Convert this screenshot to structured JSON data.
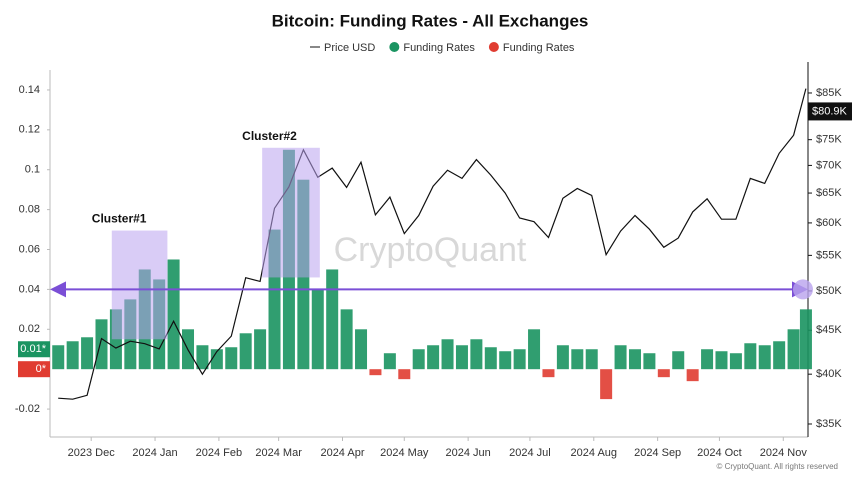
{
  "chart_data": {
    "type": "bar",
    "title": "Bitcoin: Funding Rates - All Exchanges",
    "watermark": "CryptoQuant",
    "copyright": "© CryptoQuant. All rights reserved",
    "x": [
      "2023-11-15",
      "2023-11-22",
      "2023-11-29",
      "2023-12-06",
      "2023-12-13",
      "2023-12-20",
      "2023-12-27",
      "2024-01-03",
      "2024-01-10",
      "2024-01-17",
      "2024-01-24",
      "2024-01-31",
      "2024-02-07",
      "2024-02-14",
      "2024-02-21",
      "2024-02-28",
      "2024-03-06",
      "2024-03-13",
      "2024-03-20",
      "2024-03-27",
      "2024-04-03",
      "2024-04-10",
      "2024-04-17",
      "2024-04-24",
      "2024-05-01",
      "2024-05-08",
      "2024-05-15",
      "2024-05-22",
      "2024-05-29",
      "2024-06-05",
      "2024-06-12",
      "2024-06-19",
      "2024-06-26",
      "2024-07-03",
      "2024-07-10",
      "2024-07-17",
      "2024-07-24",
      "2024-07-31",
      "2024-08-07",
      "2024-08-14",
      "2024-08-21",
      "2024-08-28",
      "2024-09-04",
      "2024-09-11",
      "2024-09-18",
      "2024-09-25",
      "2024-10-02",
      "2024-10-09",
      "2024-10-16",
      "2024-10-23",
      "2024-10-30",
      "2024-11-06",
      "2024-11-12"
    ],
    "series": [
      {
        "name": "Price USD",
        "type": "line",
        "axis": "y2",
        "color": "#111111",
        "values": [
          37500,
          37400,
          37800,
          44000,
          42900,
          43700,
          43400,
          42800,
          46100,
          42700,
          40000,
          42500,
          44300,
          51800,
          51300,
          62400,
          66100,
          73000,
          67800,
          69500,
          66000,
          70600,
          61300,
          64300,
          58300,
          61200,
          66200,
          69100,
          67600,
          71100,
          68200,
          65000,
          60800,
          60200,
          57700,
          64100,
          65800,
          64600,
          55100,
          58700,
          61200,
          59000,
          56200,
          57600,
          61800,
          64000,
          60600,
          60600,
          67600,
          66700,
          72300,
          75900,
          86000
        ]
      },
      {
        "name": "Funding Rates",
        "type": "bar",
        "color": "#1a9461",
        "values": [
          0.012,
          0.014,
          0.016,
          0.025,
          0.03,
          0.035,
          0.05,
          0.045,
          0.055,
          0.02,
          0.012,
          0.01,
          0.011,
          0.018,
          0.02,
          0.07,
          0.11,
          0.095,
          0.04,
          0.05,
          0.03,
          0.02,
          null,
          0.008,
          null,
          0.01,
          0.012,
          0.015,
          0.012,
          0.015,
          0.011,
          0.009,
          0.01,
          0.02,
          null,
          0.012,
          0.01,
          0.01,
          null,
          0.012,
          0.01,
          0.008,
          null,
          0.009,
          null,
          0.01,
          0.009,
          0.008,
          0.013,
          0.012,
          0.014,
          0.02,
          0.03
        ]
      },
      {
        "name": "Funding Rates",
        "type": "bar",
        "color": "#e03c31",
        "values": [
          null,
          null,
          null,
          null,
          null,
          null,
          null,
          null,
          null,
          null,
          null,
          null,
          null,
          null,
          null,
          null,
          null,
          null,
          null,
          null,
          null,
          null,
          -0.003,
          null,
          -0.005,
          null,
          null,
          null,
          null,
          null,
          null,
          null,
          null,
          null,
          -0.004,
          null,
          null,
          null,
          -0.015,
          null,
          null,
          null,
          -0.004,
          null,
          -0.006,
          null,
          null,
          null,
          null,
          null,
          null,
          null,
          null
        ]
      }
    ],
    "xlim": [
      "2023-11-11",
      "2024-11-13"
    ],
    "xticks": [
      {
        "value": "2023-12-01",
        "label": "2023 Dec"
      },
      {
        "value": "2024-01-01",
        "label": "2024 Jan"
      },
      {
        "value": "2024-02-01",
        "label": "2024 Feb"
      },
      {
        "value": "2024-03-01",
        "label": "2024 Mar"
      },
      {
        "value": "2024-04-01",
        "label": "2024 Apr"
      },
      {
        "value": "2024-05-01",
        "label": "2024 May"
      },
      {
        "value": "2024-06-01",
        "label": "2024 Jun"
      },
      {
        "value": "2024-07-01",
        "label": "2024 Jul"
      },
      {
        "value": "2024-08-01",
        "label": "2024 Aug"
      },
      {
        "value": "2024-09-01",
        "label": "2024 Sep"
      },
      {
        "value": "2024-10-01",
        "label": "2024 Oct"
      },
      {
        "value": "2024-11-01",
        "label": "2024 Nov"
      }
    ],
    "ylim": [
      -0.034,
      0.15
    ],
    "yticks": [
      -0.02,
      0.02,
      0.04,
      0.06,
      0.08,
      0.1,
      0.12,
      0.14
    ],
    "y2scale": "log",
    "y2lim": [
      33800,
      90400
    ],
    "y2ticks": [
      {
        "value": 35000,
        "label": "$35K"
      },
      {
        "value": 40000,
        "label": "$40K"
      },
      {
        "value": 45000,
        "label": "$45K"
      },
      {
        "value": 50000,
        "label": "$50K"
      },
      {
        "value": 55000,
        "label": "$55K"
      },
      {
        "value": 60000,
        "label": "$60K"
      },
      {
        "value": 65000,
        "label": "$65K"
      },
      {
        "value": 70000,
        "label": "$70K"
      },
      {
        "value": 75000,
        "label": "$75K"
      },
      {
        "value": 80000,
        "label": "$80K"
      },
      {
        "value": 85000,
        "label": "$85K"
      }
    ],
    "y_tags": [
      {
        "value": 0.01,
        "label": "0.01*",
        "color": "#1a9461"
      },
      {
        "value": 0,
        "label": "0*",
        "color": "#e03c31"
      }
    ],
    "y2_tag": {
      "value": 80900,
      "label": "$80.9K",
      "color": "#111111"
    },
    "reference_line": {
      "value": 0.04,
      "color": "#7b4fd6"
    },
    "annotations": [
      {
        "text": "Cluster#1",
        "x": [
          "2023-12-11",
          "2024-01-07"
        ],
        "y": [
          0.015,
          0.0695
        ]
      },
      {
        "text": "Cluster#2",
        "x": [
          "2024-02-22",
          "2024-03-21"
        ],
        "y": [
          0.046,
          0.111
        ]
      }
    ]
  }
}
